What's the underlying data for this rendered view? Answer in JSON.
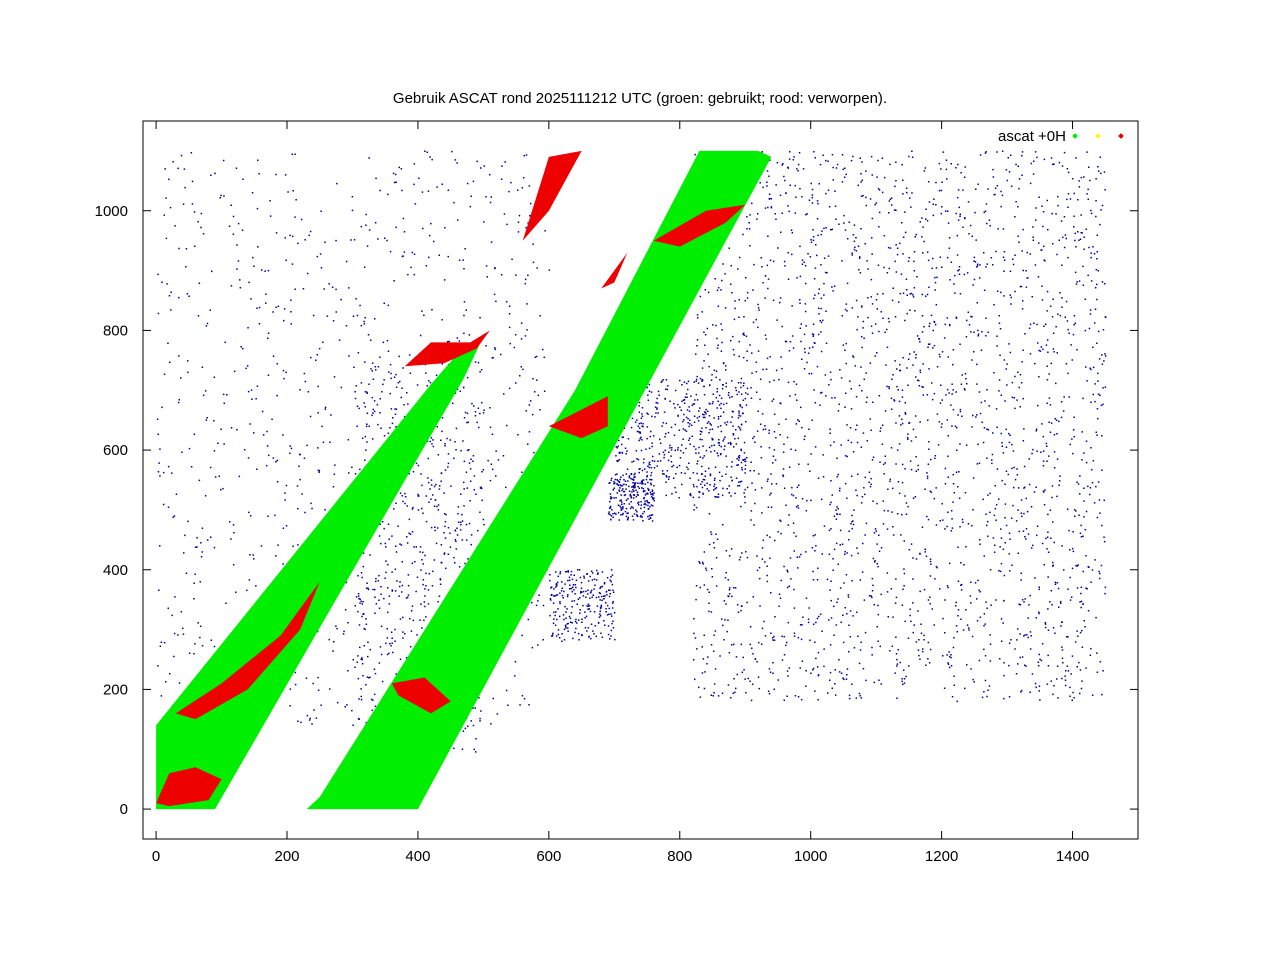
{
  "chart_data": {
    "type": "scatter",
    "title": "Gebruik ASCAT rond 2025111212 UTC (groen: gebruikt; rood: verworpen).",
    "xlabel": "",
    "ylabel": "",
    "xlim": [
      -20,
      1500
    ],
    "ylim": [
      -50,
      1150
    ],
    "x_ticks": [
      0,
      200,
      400,
      600,
      800,
      1000,
      1200,
      1400
    ],
    "y_ticks": [
      0,
      200,
      400,
      600,
      800,
      1000
    ],
    "grid": false,
    "legend_position": "top-right",
    "legend": {
      "label": "ascat +0H"
    },
    "colors": {
      "used": "#00ee00",
      "uncertain": "#ffff00",
      "rejected": "#ee0000",
      "coast": "#0000a0",
      "frame": "#000000"
    },
    "series": [
      {
        "name": "used",
        "color": "#00ee00",
        "swaths": [
          [
            [
              0,
              0
            ],
            [
              90,
              0
            ],
            [
              470,
              720
            ],
            [
              500,
              790
            ],
            [
              460,
              760
            ],
            [
              420,
              710
            ],
            [
              0,
              140
            ]
          ],
          [
            [
              230,
              0
            ],
            [
              400,
              0
            ],
            [
              940,
              1090
            ],
            [
              920,
              1100
            ],
            [
              830,
              1100
            ],
            [
              640,
              700
            ],
            [
              250,
              20
            ]
          ]
        ]
      },
      {
        "name": "rejected",
        "color": "#ee0000",
        "patches": [
          [
            [
              0,
              10
            ],
            [
              20,
              60
            ],
            [
              60,
              70
            ],
            [
              100,
              50
            ],
            [
              80,
              15
            ],
            [
              20,
              5
            ]
          ],
          [
            [
              30,
              160
            ],
            [
              100,
              210
            ],
            [
              190,
              290
            ],
            [
              250,
              380
            ],
            [
              220,
              300
            ],
            [
              140,
              200
            ],
            [
              60,
              150
            ]
          ],
          [
            [
              380,
              740
            ],
            [
              420,
              780
            ],
            [
              480,
              780
            ],
            [
              510,
              800
            ],
            [
              490,
              770
            ],
            [
              440,
              745
            ]
          ],
          [
            [
              600,
              640
            ],
            [
              690,
              690
            ],
            [
              690,
              640
            ],
            [
              650,
              620
            ]
          ],
          [
            [
              360,
              210
            ],
            [
              410,
              220
            ],
            [
              450,
              180
            ],
            [
              420,
              160
            ],
            [
              370,
              190
            ]
          ],
          [
            [
              760,
              950
            ],
            [
              840,
              1000
            ],
            [
              900,
              1010
            ],
            [
              870,
              980
            ],
            [
              800,
              940
            ]
          ],
          [
            [
              560,
              950
            ],
            [
              600,
              1090
            ],
            [
              650,
              1100
            ],
            [
              600,
              1000
            ]
          ],
          [
            [
              680,
              870
            ],
            [
              720,
              930
            ],
            [
              700,
              880
            ]
          ]
        ]
      }
    ]
  }
}
